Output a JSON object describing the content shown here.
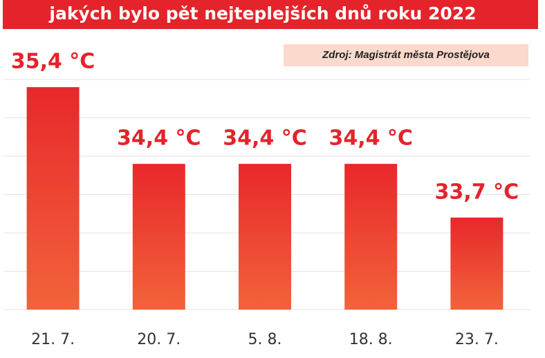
{
  "chart_data": {
    "type": "bar",
    "title": "jakých bylo pět nejteplejších dnů roku 2022",
    "source": "Zdroj: Magistrát města Prostějova",
    "categories": [
      "21. 7.",
      "20. 7.",
      "5. 8.",
      "18. 8.",
      "23. 7."
    ],
    "values": [
      35.4,
      34.4,
      34.4,
      34.4,
      33.7
    ],
    "value_labels": [
      "35,4 °C",
      "34,4 °C",
      "34,4 °C",
      "34,4 °C",
      "33,7 °C"
    ],
    "color": "#e8282b",
    "ylim": [
      32.5,
      35.5
    ],
    "yticks": [
      32.5,
      33,
      33.5,
      34,
      34.5,
      35,
      35.5
    ],
    "grid": true
  }
}
